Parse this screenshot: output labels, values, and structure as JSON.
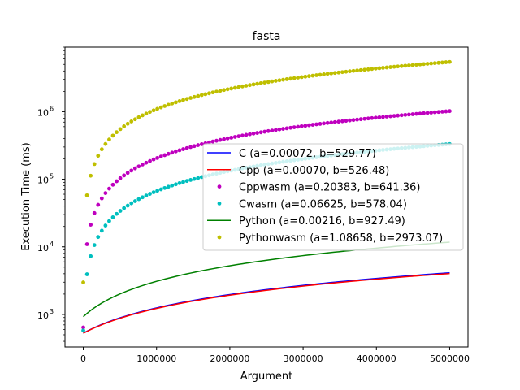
{
  "chart_data": {
    "type": "line",
    "title": "fasta",
    "xlabel": "Argument",
    "ylabel": "Execution Time (ms)",
    "xlim": [
      -250000,
      5250000
    ],
    "ylim": [
      330,
      9000000
    ],
    "yscale": "log",
    "x_ticks": [
      0,
      1000000,
      2000000,
      3000000,
      4000000,
      5000000
    ],
    "x_tick_labels": [
      "0",
      "1000000",
      "2000000",
      "3000000",
      "4000000",
      "5000000"
    ],
    "y_ticks": [
      1000,
      10000,
      100000,
      1000000
    ],
    "y_tick_labels": [
      "10",
      "10",
      "10",
      "10"
    ],
    "y_tick_exponents": [
      "3",
      "4",
      "5",
      "6"
    ],
    "x_range": [
      0,
      5000000
    ],
    "point_count": 100,
    "legend_position": "center-right",
    "series": [
      {
        "name": "C (a=0.00072, b=529.77)",
        "style": "line",
        "color": "#0000ff",
        "a": 0.00072,
        "b": 529.77
      },
      {
        "name": "Cpp (a=0.00070, b=526.48)",
        "style": "line",
        "color": "#ff0000",
        "a": 0.0007,
        "b": 526.48
      },
      {
        "name": "Cppwasm (a=0.20383, b=641.36)",
        "style": "scatter",
        "color": "#bf00bf",
        "a": 0.20383,
        "b": 641.36
      },
      {
        "name": "Cwasm (a=0.06625, b=578.04)",
        "style": "scatter",
        "color": "#00bfbf",
        "a": 0.06625,
        "b": 578.04
      },
      {
        "name": "Python (a=0.00216, b=927.49)",
        "style": "line",
        "color": "#008000",
        "a": 0.00216,
        "b": 927.49
      },
      {
        "name": "Pythonwasm (a=1.08658, b=2973.07)",
        "style": "scatter",
        "color": "#bfbf00",
        "a": 1.08658,
        "b": 2973.07
      }
    ]
  }
}
